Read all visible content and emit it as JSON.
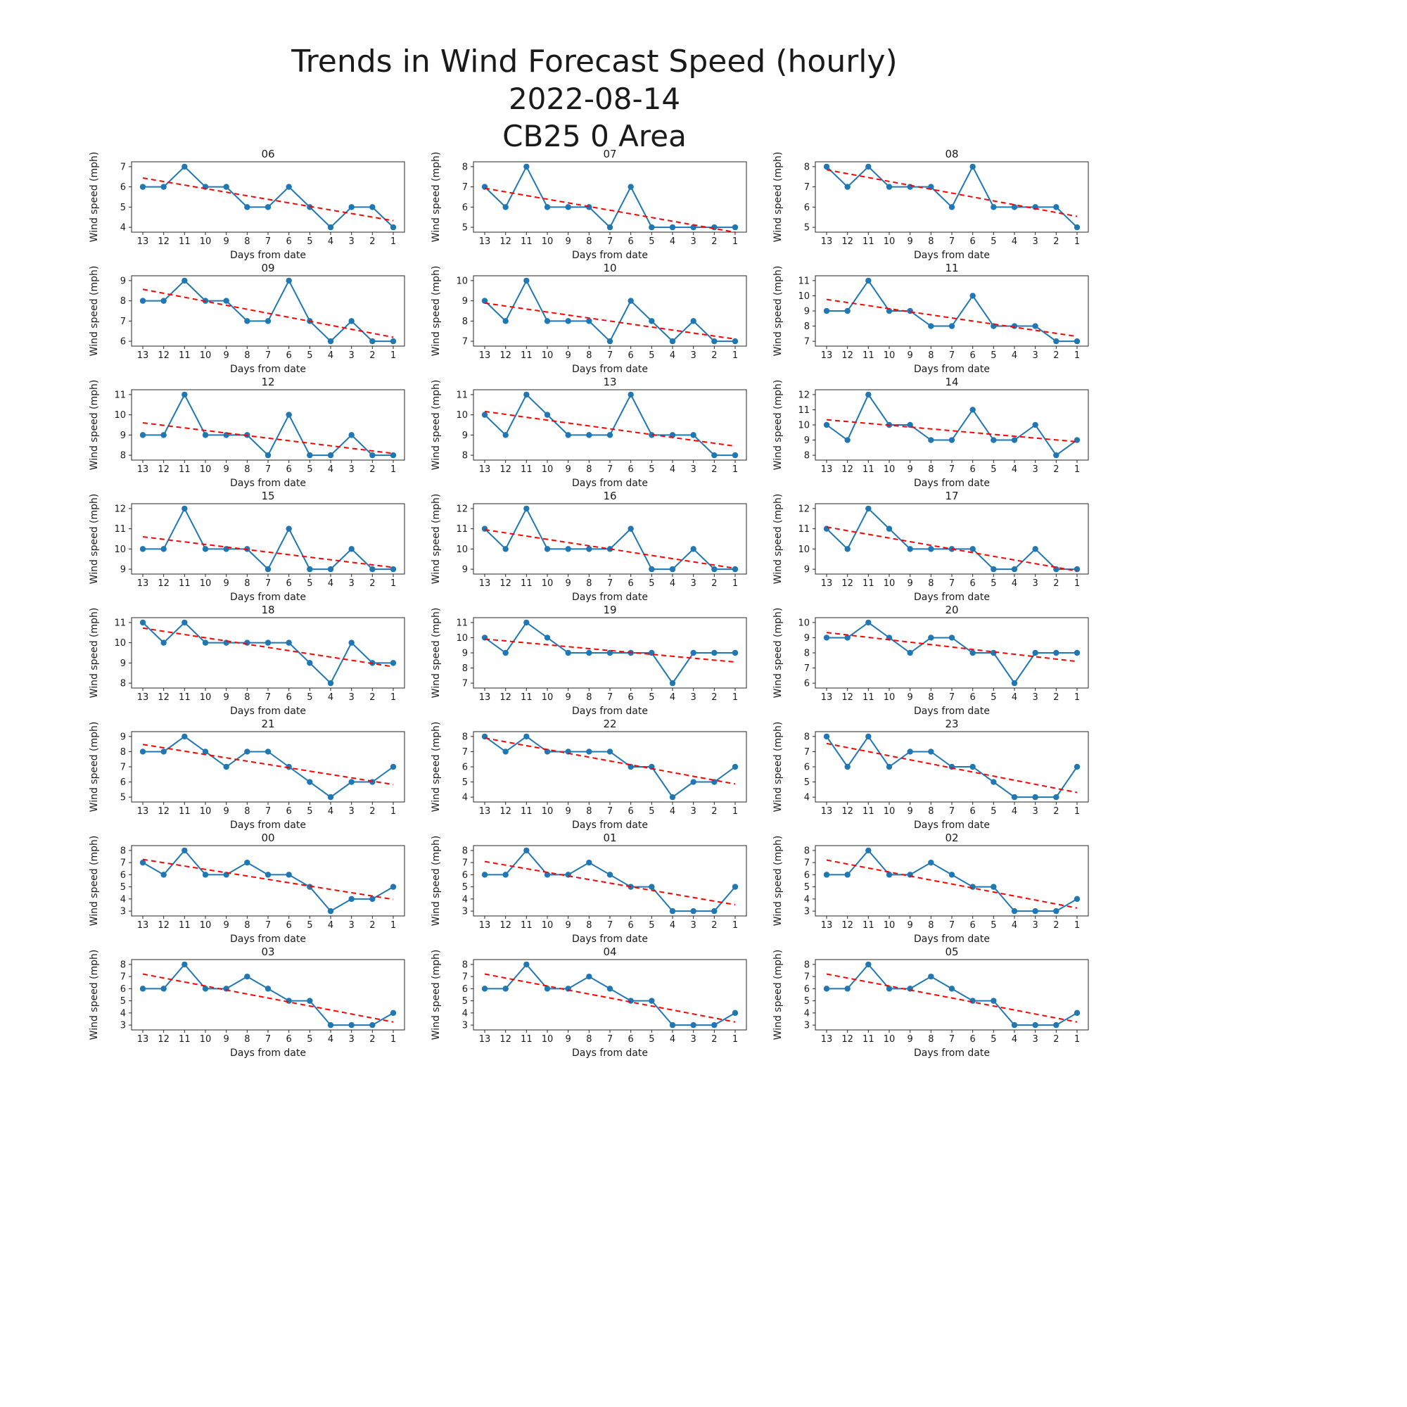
{
  "chart_data": {
    "type": "line",
    "title": "Trends in Wind Forecast Speed (hourly)",
    "subtitle_date": "2022-08-14",
    "subtitle_area": "CB25 0 Area",
    "xlabel": "Days from date",
    "ylabel": "Wind speed (mph)",
    "x": [
      13,
      12,
      11,
      10,
      9,
      8,
      7,
      6,
      5,
      4,
      3,
      2,
      1
    ],
    "series_color": "#1f77b4",
    "trend_color": "#ff0000",
    "trend_style": "dashed",
    "legend": "none",
    "grid": "off",
    "subplots": [
      {
        "title": "06",
        "yticks": [
          4,
          5,
          6,
          7
        ],
        "values": [
          6,
          6,
          7,
          6,
          6,
          5,
          5,
          6,
          5,
          4,
          5,
          5,
          4
        ]
      },
      {
        "title": "07",
        "yticks": [
          5,
          6,
          7,
          8
        ],
        "values": [
          7,
          6,
          8,
          6,
          6,
          6,
          5,
          7,
          5,
          5,
          5,
          5,
          5
        ]
      },
      {
        "title": "08",
        "yticks": [
          5,
          6,
          7,
          8
        ],
        "values": [
          8,
          7,
          8,
          7,
          7,
          7,
          6,
          8,
          6,
          6,
          6,
          6,
          5
        ]
      },
      {
        "title": "09",
        "yticks": [
          6,
          7,
          8,
          9
        ],
        "values": [
          8,
          8,
          9,
          8,
          8,
          7,
          7,
          9,
          7,
          6,
          7,
          6,
          6
        ]
      },
      {
        "title": "10",
        "yticks": [
          7,
          8,
          9,
          10
        ],
        "values": [
          9,
          8,
          10,
          8,
          8,
          8,
          7,
          9,
          8,
          7,
          8,
          7,
          7
        ]
      },
      {
        "title": "11",
        "yticks": [
          7,
          8,
          9,
          10,
          11
        ],
        "values": [
          9,
          9,
          11,
          9,
          9,
          8,
          8,
          10,
          8,
          8,
          8,
          7,
          7
        ]
      },
      {
        "title": "12",
        "yticks": [
          8,
          9,
          10,
          11
        ],
        "values": [
          9,
          9,
          11,
          9,
          9,
          9,
          8,
          10,
          8,
          8,
          9,
          8,
          8
        ]
      },
      {
        "title": "13",
        "yticks": [
          8,
          9,
          10,
          11
        ],
        "values": [
          10,
          9,
          11,
          10,
          9,
          9,
          9,
          11,
          9,
          9,
          9,
          8,
          8
        ]
      },
      {
        "title": "14",
        "yticks": [
          8,
          9,
          10,
          11,
          12
        ],
        "values": [
          10,
          9,
          12,
          10,
          10,
          9,
          9,
          11,
          9,
          9,
          10,
          8,
          9
        ]
      },
      {
        "title": "15",
        "yticks": [
          9,
          10,
          11,
          12
        ],
        "values": [
          10,
          10,
          12,
          10,
          10,
          10,
          9,
          11,
          9,
          9,
          10,
          9,
          9
        ]
      },
      {
        "title": "16",
        "yticks": [
          9,
          10,
          11,
          12
        ],
        "values": [
          11,
          10,
          12,
          10,
          10,
          10,
          10,
          11,
          9,
          9,
          10,
          9,
          9
        ]
      },
      {
        "title": "17",
        "yticks": [
          9,
          10,
          11,
          12
        ],
        "values": [
          11,
          10,
          12,
          11,
          10,
          10,
          10,
          10,
          9,
          9,
          10,
          9,
          9
        ]
      },
      {
        "title": "18",
        "yticks": [
          8,
          9,
          10,
          11
        ],
        "values": [
          11,
          10,
          11,
          10,
          10,
          10,
          10,
          10,
          9,
          8,
          10,
          9,
          9
        ]
      },
      {
        "title": "19",
        "yticks": [
          7,
          8,
          9,
          10,
          11
        ],
        "values": [
          10,
          9,
          11,
          10,
          9,
          9,
          9,
          9,
          9,
          7,
          9,
          9,
          9
        ]
      },
      {
        "title": "20",
        "yticks": [
          6,
          7,
          8,
          9,
          10
        ],
        "values": [
          9,
          9,
          10,
          9,
          8,
          9,
          9,
          8,
          8,
          6,
          8,
          8,
          8
        ]
      },
      {
        "title": "21",
        "yticks": [
          5,
          6,
          7,
          8,
          9
        ],
        "values": [
          8,
          8,
          9,
          8,
          7,
          8,
          8,
          7,
          6,
          5,
          6,
          6,
          7
        ]
      },
      {
        "title": "22",
        "yticks": [
          4,
          5,
          6,
          7,
          8
        ],
        "values": [
          8,
          7,
          8,
          7,
          7,
          7,
          7,
          6,
          6,
          4,
          5,
          5,
          6
        ]
      },
      {
        "title": "23",
        "yticks": [
          4,
          5,
          6,
          7,
          8
        ],
        "values": [
          8,
          6,
          8,
          6,
          7,
          7,
          6,
          6,
          5,
          4,
          4,
          4,
          6
        ]
      },
      {
        "title": "00",
        "yticks": [
          3,
          4,
          5,
          6,
          7,
          8
        ],
        "values": [
          7,
          6,
          8,
          6,
          6,
          7,
          6,
          6,
          5,
          3,
          4,
          4,
          5
        ]
      },
      {
        "title": "01",
        "yticks": [
          3,
          4,
          5,
          6,
          7,
          8
        ],
        "values": [
          6,
          6,
          8,
          6,
          6,
          7,
          6,
          5,
          5,
          3,
          3,
          3,
          5
        ]
      },
      {
        "title": "02",
        "yticks": [
          3,
          4,
          5,
          6,
          7,
          8
        ],
        "values": [
          6,
          6,
          8,
          6,
          6,
          7,
          6,
          5,
          5,
          3,
          3,
          3,
          4
        ]
      },
      {
        "title": "03",
        "yticks": [
          3,
          4,
          5,
          6,
          7,
          8
        ],
        "values": [
          6,
          6,
          8,
          6,
          6,
          7,
          6,
          5,
          5,
          3,
          3,
          3,
          4
        ]
      },
      {
        "title": "04",
        "yticks": [
          3,
          4,
          5,
          6,
          7,
          8
        ],
        "values": [
          6,
          6,
          8,
          6,
          6,
          7,
          6,
          5,
          5,
          3,
          3,
          3,
          4
        ]
      },
      {
        "title": "05",
        "yticks": [
          3,
          4,
          5,
          6,
          7,
          8
        ],
        "values": [
          6,
          6,
          8,
          6,
          6,
          7,
          6,
          5,
          5,
          3,
          3,
          3,
          4
        ]
      }
    ]
  }
}
